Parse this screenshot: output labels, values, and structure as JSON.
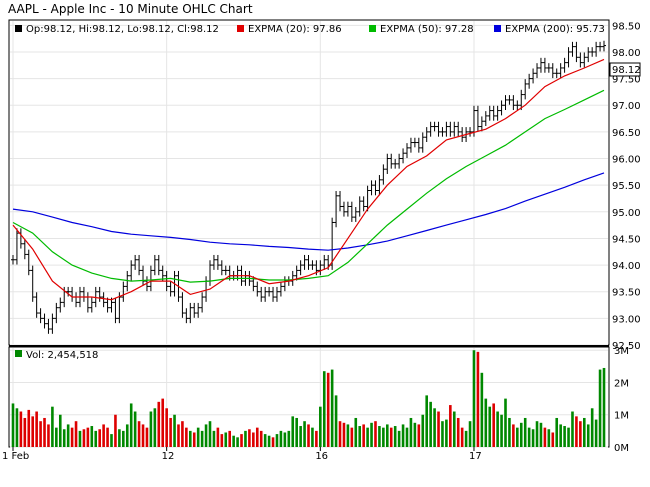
{
  "title": "AAPL - Apple Inc - 10 Minute OHLC Chart",
  "legend": {
    "ohlc": "Op:98.12, Hi:98.12, Lo:98.12, Cl:98.12",
    "ema20": "EXPMA (20): 97.86",
    "ema50": "EXPMA (50): 97.28",
    "ema200": "EXPMA (200): 95.73"
  },
  "volume_legend": "Vol: 2,454,518",
  "last_price_label": "98.12",
  "colors": {
    "bars": "#000000",
    "ema20": "#e00000",
    "ema50": "#00bb00",
    "ema200": "#0000dd",
    "vol_up": "#008800",
    "vol_down": "#dd0000",
    "grid": "#e5e5e5",
    "panel_border": "#000000",
    "separator": "#000000"
  },
  "chart_data": {
    "type": "ohlc",
    "title": "AAPL - Apple Inc - 10 Minute OHLC Chart",
    "x_tick_labels": [
      "1 Feb",
      "12",
      "16",
      "17"
    ],
    "x_tick_bar_index": [
      0,
      39,
      78,
      117
    ],
    "y_ticks": [
      "92.50",
      "93.00",
      "93.50",
      "94.00",
      "94.50",
      "95.00",
      "95.50",
      "96.00",
      "96.50",
      "97.00",
      "97.50",
      "98.00",
      "98.50"
    ],
    "ylim": [
      92.5,
      98.6
    ],
    "grid": true,
    "volume_y_ticks": [
      "0M",
      "1M",
      "2M",
      "3M"
    ],
    "volume_ylim": [
      0,
      3.1
    ],
    "close_pts": [
      [
        0,
        94.1
      ],
      [
        1,
        94.6
      ],
      [
        2,
        94.4
      ],
      [
        3,
        94.2
      ],
      [
        4,
        93.9
      ],
      [
        5,
        93.4
      ],
      [
        6,
        93.1
      ],
      [
        7,
        93.0
      ],
      [
        8,
        92.9
      ],
      [
        9,
        92.8
      ],
      [
        10,
        93.0
      ],
      [
        11,
        93.2
      ],
      [
        12,
        93.3
      ],
      [
        13,
        93.5
      ],
      [
        14,
        93.5
      ],
      [
        15,
        93.4
      ],
      [
        16,
        93.3
      ],
      [
        17,
        93.5
      ],
      [
        18,
        93.4
      ],
      [
        19,
        93.2
      ],
      [
        20,
        93.3
      ],
      [
        21,
        93.5
      ],
      [
        22,
        93.4
      ],
      [
        23,
        93.3
      ],
      [
        24,
        93.2
      ],
      [
        25,
        93.3
      ],
      [
        26,
        93.0
      ],
      [
        27,
        93.4
      ],
      [
        28,
        93.6
      ],
      [
        29,
        93.8
      ],
      [
        30,
        94.0
      ],
      [
        31,
        94.1
      ],
      [
        32,
        93.9
      ],
      [
        33,
        93.7
      ],
      [
        34,
        93.6
      ],
      [
        35,
        93.9
      ],
      [
        36,
        94.1
      ],
      [
        37,
        93.9
      ],
      [
        38,
        93.8
      ],
      [
        39,
        93.6
      ],
      [
        40,
        93.5
      ],
      [
        41,
        93.8
      ],
      [
        42,
        93.4
      ],
      [
        43,
        93.1
      ],
      [
        44,
        93.0
      ],
      [
        45,
        93.2
      ],
      [
        46,
        93.1
      ],
      [
        47,
        93.2
      ],
      [
        48,
        93.4
      ],
      [
        49,
        93.7
      ],
      [
        50,
        94.0
      ],
      [
        51,
        94.1
      ],
      [
        52,
        94.0
      ],
      [
        53,
        93.9
      ],
      [
        54,
        93.9
      ],
      [
        55,
        93.8
      ],
      [
        56,
        93.8
      ],
      [
        57,
        93.9
      ],
      [
        58,
        93.7
      ],
      [
        59,
        93.8
      ],
      [
        60,
        93.7
      ],
      [
        61,
        93.6
      ],
      [
        62,
        93.5
      ],
      [
        63,
        93.4
      ],
      [
        64,
        93.5
      ],
      [
        65,
        93.5
      ],
      [
        66,
        93.4
      ],
      [
        67,
        93.5
      ],
      [
        68,
        93.6
      ],
      [
        69,
        93.7
      ],
      [
        70,
        93.7
      ],
      [
        71,
        93.8
      ],
      [
        72,
        93.9
      ],
      [
        73,
        94.0
      ],
      [
        74,
        94.1
      ],
      [
        75,
        94.0
      ],
      [
        76,
        94.0
      ],
      [
        77,
        93.9
      ],
      [
        78,
        94.0
      ],
      [
        79,
        94.1
      ],
      [
        80,
        94.0
      ],
      [
        81,
        94.8
      ],
      [
        82,
        95.3
      ],
      [
        83,
        95.1
      ],
      [
        84,
        95.0
      ],
      [
        85,
        95.1
      ],
      [
        86,
        94.9
      ],
      [
        87,
        95.0
      ],
      [
        88,
        95.2
      ],
      [
        89,
        95.1
      ],
      [
        90,
        95.4
      ],
      [
        91,
        95.5
      ],
      [
        92,
        95.4
      ],
      [
        93,
        95.6
      ],
      [
        94,
        95.8
      ],
      [
        95,
        96.0
      ],
      [
        96,
        95.9
      ],
      [
        97,
        95.9
      ],
      [
        98,
        96.0
      ],
      [
        99,
        96.1
      ],
      [
        100,
        96.2
      ],
      [
        101,
        96.3
      ],
      [
        102,
        96.3
      ],
      [
        103,
        96.2
      ],
      [
        104,
        96.4
      ],
      [
        105,
        96.5
      ],
      [
        106,
        96.6
      ],
      [
        107,
        96.6
      ],
      [
        108,
        96.5
      ],
      [
        109,
        96.5
      ],
      [
        110,
        96.6
      ],
      [
        111,
        96.5
      ],
      [
        112,
        96.6
      ],
      [
        113,
        96.5
      ],
      [
        114,
        96.4
      ],
      [
        115,
        96.5
      ],
      [
        116,
        96.5
      ],
      [
        117,
        96.9
      ],
      [
        118,
        96.6
      ],
      [
        119,
        96.7
      ],
      [
        120,
        96.8
      ],
      [
        121,
        96.9
      ],
      [
        122,
        96.8
      ],
      [
        123,
        96.9
      ],
      [
        124,
        97.0
      ],
      [
        125,
        97.1
      ],
      [
        126,
        97.1
      ],
      [
        127,
        97.0
      ],
      [
        128,
        97.0
      ],
      [
        129,
        97.2
      ],
      [
        130,
        97.4
      ],
      [
        131,
        97.5
      ],
      [
        132,
        97.6
      ],
      [
        133,
        97.7
      ],
      [
        134,
        97.8
      ],
      [
        135,
        97.7
      ],
      [
        136,
        97.7
      ],
      [
        137,
        97.6
      ],
      [
        138,
        97.6
      ],
      [
        139,
        97.7
      ],
      [
        140,
        97.8
      ],
      [
        141,
        98.0
      ],
      [
        142,
        98.1
      ],
      [
        143,
        97.9
      ],
      [
        144,
        97.8
      ],
      [
        145,
        97.9
      ],
      [
        146,
        98.0
      ],
      [
        147,
        98.0
      ],
      [
        148,
        98.1
      ],
      [
        149,
        98.1
      ],
      [
        150,
        98.12
      ]
    ],
    "ema20_pts": [
      [
        0,
        94.75
      ],
      [
        5,
        94.3
      ],
      [
        10,
        93.7
      ],
      [
        15,
        93.4
      ],
      [
        20,
        93.4
      ],
      [
        25,
        93.35
      ],
      [
        30,
        93.5
      ],
      [
        35,
        93.7
      ],
      [
        40,
        93.7
      ],
      [
        45,
        93.45
      ],
      [
        50,
        93.55
      ],
      [
        55,
        93.8
      ],
      [
        60,
        93.8
      ],
      [
        65,
        93.65
      ],
      [
        70,
        93.7
      ],
      [
        75,
        93.8
      ],
      [
        80,
        93.95
      ],
      [
        85,
        94.5
      ],
      [
        90,
        95.05
      ],
      [
        95,
        95.5
      ],
      [
        100,
        95.85
      ],
      [
        105,
        96.05
      ],
      [
        110,
        96.35
      ],
      [
        115,
        96.45
      ],
      [
        120,
        96.55
      ],
      [
        125,
        96.75
      ],
      [
        130,
        97.0
      ],
      [
        135,
        97.35
      ],
      [
        140,
        97.55
      ],
      [
        145,
        97.7
      ],
      [
        150,
        97.86
      ]
    ],
    "ema50_pts": [
      [
        0,
        94.8
      ],
      [
        5,
        94.6
      ],
      [
        10,
        94.25
      ],
      [
        15,
        94.0
      ],
      [
        20,
        93.85
      ],
      [
        25,
        93.75
      ],
      [
        30,
        93.7
      ],
      [
        35,
        93.72
      ],
      [
        40,
        93.75
      ],
      [
        45,
        93.68
      ],
      [
        50,
        93.7
      ],
      [
        55,
        93.75
      ],
      [
        60,
        93.75
      ],
      [
        65,
        93.72
      ],
      [
        70,
        93.72
      ],
      [
        75,
        93.75
      ],
      [
        80,
        93.8
      ],
      [
        85,
        94.05
      ],
      [
        90,
        94.4
      ],
      [
        95,
        94.75
      ],
      [
        100,
        95.05
      ],
      [
        105,
        95.35
      ],
      [
        110,
        95.62
      ],
      [
        115,
        95.85
      ],
      [
        120,
        96.05
      ],
      [
        125,
        96.25
      ],
      [
        130,
        96.5
      ],
      [
        135,
        96.75
      ],
      [
        140,
        96.92
      ],
      [
        145,
        97.1
      ],
      [
        150,
        97.28
      ]
    ],
    "ema200_pts": [
      [
        0,
        95.05
      ],
      [
        5,
        95.0
      ],
      [
        10,
        94.9
      ],
      [
        15,
        94.8
      ],
      [
        20,
        94.72
      ],
      [
        25,
        94.63
      ],
      [
        30,
        94.58
      ],
      [
        35,
        94.55
      ],
      [
        40,
        94.52
      ],
      [
        45,
        94.48
      ],
      [
        50,
        94.43
      ],
      [
        55,
        94.4
      ],
      [
        60,
        94.38
      ],
      [
        65,
        94.35
      ],
      [
        70,
        94.33
      ],
      [
        75,
        94.3
      ],
      [
        80,
        94.28
      ],
      [
        85,
        94.32
      ],
      [
        90,
        94.38
      ],
      [
        95,
        94.45
      ],
      [
        100,
        94.55
      ],
      [
        105,
        94.65
      ],
      [
        110,
        94.75
      ],
      [
        115,
        94.85
      ],
      [
        120,
        94.95
      ],
      [
        125,
        95.06
      ],
      [
        130,
        95.2
      ],
      [
        135,
        95.33
      ],
      [
        140,
        95.46
      ],
      [
        145,
        95.6
      ],
      [
        150,
        95.73
      ]
    ],
    "volume_pts": [
      [
        0,
        1.35
      ],
      [
        1,
        1.2
      ],
      [
        2,
        1.1
      ],
      [
        3,
        0.9
      ],
      [
        4,
        1.15
      ],
      [
        5,
        0.95
      ],
      [
        6,
        1.1
      ],
      [
        7,
        0.8
      ],
      [
        8,
        0.9
      ],
      [
        9,
        0.7
      ],
      [
        10,
        1.25
      ],
      [
        11,
        0.6
      ],
      [
        12,
        1.0
      ],
      [
        13,
        0.55
      ],
      [
        14,
        0.7
      ],
      [
        15,
        0.6
      ],
      [
        16,
        0.8
      ],
      [
        17,
        0.5
      ],
      [
        18,
        0.55
      ],
      [
        19,
        0.6
      ],
      [
        20,
        0.65
      ],
      [
        21,
        0.5
      ],
      [
        22,
        0.55
      ],
      [
        23,
        0.7
      ],
      [
        24,
        0.6
      ],
      [
        25,
        0.4
      ],
      [
        26,
        1.0
      ],
      [
        27,
        0.55
      ],
      [
        28,
        0.5
      ],
      [
        29,
        0.7
      ],
      [
        30,
        1.35
      ],
      [
        31,
        1.1
      ],
      [
        32,
        0.8
      ],
      [
        33,
        0.7
      ],
      [
        34,
        0.6
      ],
      [
        35,
        1.1
      ],
      [
        36,
        1.2
      ],
      [
        37,
        1.4
      ],
      [
        38,
        1.5
      ],
      [
        39,
        1.2
      ],
      [
        40,
        0.9
      ],
      [
        41,
        1.0
      ],
      [
        42,
        0.7
      ],
      [
        43,
        0.8
      ],
      [
        44,
        0.6
      ],
      [
        45,
        0.5
      ],
      [
        46,
        0.45
      ],
      [
        47,
        0.6
      ],
      [
        48,
        0.5
      ],
      [
        49,
        0.7
      ],
      [
        50,
        0.8
      ],
      [
        51,
        0.5
      ],
      [
        52,
        0.6
      ],
      [
        53,
        0.4
      ],
      [
        54,
        0.45
      ],
      [
        55,
        0.5
      ],
      [
        56,
        0.35
      ],
      [
        57,
        0.3
      ],
      [
        58,
        0.4
      ],
      [
        59,
        0.5
      ],
      [
        60,
        0.55
      ],
      [
        61,
        0.45
      ],
      [
        62,
        0.6
      ],
      [
        63,
        0.5
      ],
      [
        64,
        0.4
      ],
      [
        65,
        0.35
      ],
      [
        66,
        0.3
      ],
      [
        67,
        0.4
      ],
      [
        68,
        0.5
      ],
      [
        69,
        0.45
      ],
      [
        70,
        0.5
      ],
      [
        71,
        0.95
      ],
      [
        72,
        0.9
      ],
      [
        73,
        0.65
      ],
      [
        74,
        0.8
      ],
      [
        75,
        0.7
      ],
      [
        76,
        0.6
      ],
      [
        77,
        0.5
      ],
      [
        78,
        1.25
      ],
      [
        79,
        2.35
      ],
      [
        80,
        2.3
      ],
      [
        81,
        2.4
      ],
      [
        82,
        1.6
      ],
      [
        83,
        0.8
      ],
      [
        84,
        0.75
      ],
      [
        85,
        0.7
      ],
      [
        86,
        0.6
      ],
      [
        87,
        0.9
      ],
      [
        88,
        0.65
      ],
      [
        89,
        0.7
      ],
      [
        90,
        0.6
      ],
      [
        91,
        0.75
      ],
      [
        92,
        0.8
      ],
      [
        93,
        0.65
      ],
      [
        94,
        0.6
      ],
      [
        95,
        0.7
      ],
      [
        96,
        0.6
      ],
      [
        97,
        0.65
      ],
      [
        98,
        0.5
      ],
      [
        99,
        0.7
      ],
      [
        100,
        0.6
      ],
      [
        101,
        0.9
      ],
      [
        102,
        0.75
      ],
      [
        103,
        0.7
      ],
      [
        104,
        1.0
      ],
      [
        105,
        1.6
      ],
      [
        106,
        1.4
      ],
      [
        107,
        1.2
      ],
      [
        108,
        1.1
      ],
      [
        109,
        0.8
      ],
      [
        110,
        0.85
      ],
      [
        111,
        1.3
      ],
      [
        112,
        1.1
      ],
      [
        113,
        0.9
      ],
      [
        114,
        0.6
      ],
      [
        115,
        0.5
      ],
      [
        116,
        0.8
      ],
      [
        117,
        3.0
      ],
      [
        118,
        2.95
      ],
      [
        119,
        2.3
      ],
      [
        120,
        1.5
      ],
      [
        121,
        1.25
      ],
      [
        122,
        1.35
      ],
      [
        123,
        1.1
      ],
      [
        124,
        1.0
      ],
      [
        125,
        1.5
      ],
      [
        126,
        0.9
      ],
      [
        127,
        0.7
      ],
      [
        128,
        0.6
      ],
      [
        129,
        0.75
      ],
      [
        130,
        0.9
      ],
      [
        131,
        0.6
      ],
      [
        132,
        0.55
      ],
      [
        133,
        0.8
      ],
      [
        134,
        0.75
      ],
      [
        135,
        0.6
      ],
      [
        136,
        0.55
      ],
      [
        137,
        0.45
      ],
      [
        138,
        0.9
      ],
      [
        139,
        0.7
      ],
      [
        140,
        0.65
      ],
      [
        141,
        0.6
      ],
      [
        142,
        1.1
      ],
      [
        143,
        0.95
      ],
      [
        144,
        0.8
      ],
      [
        145,
        0.9
      ],
      [
        146,
        0.7
      ],
      [
        147,
        1.2
      ],
      [
        148,
        0.85
      ],
      [
        149,
        2.4
      ],
      [
        150,
        2.45
      ]
    ]
  }
}
